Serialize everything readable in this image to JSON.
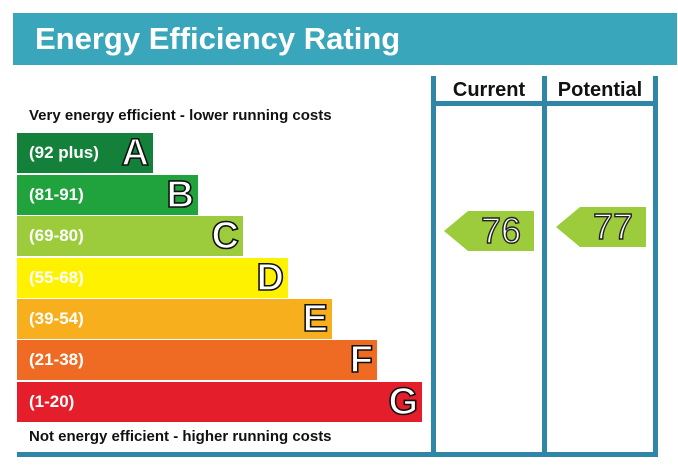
{
  "title": "Energy Efficiency Rating",
  "top_caption": "Very energy efficient - lower running costs",
  "bottom_caption": "Not energy efficient - higher running costs",
  "columns": {
    "current": "Current",
    "potential": "Potential"
  },
  "bands": [
    {
      "range": "(92 plus)",
      "letter": "A",
      "color": "#14813a"
    },
    {
      "range": "(81-91)",
      "letter": "B",
      "color": "#20a33c"
    },
    {
      "range": "(69-80)",
      "letter": "C",
      "color": "#9ccc3c"
    },
    {
      "range": "(55-68)",
      "letter": "D",
      "color": "#fff200"
    },
    {
      "range": "(39-54)",
      "letter": "E",
      "color": "#f7af1d"
    },
    {
      "range": "(21-38)",
      "letter": "F",
      "color": "#ef6b23"
    },
    {
      "range": "(1-20)",
      "letter": "G",
      "color": "#e41f2b"
    }
  ],
  "current": {
    "value": "76",
    "band": "C",
    "color": "#9ccc3c"
  },
  "potential": {
    "value": "77",
    "band": "C",
    "color": "#9ccc3c"
  },
  "colors": {
    "title_bar": "#3aa6bb",
    "frame": "#2f86a6"
  }
}
